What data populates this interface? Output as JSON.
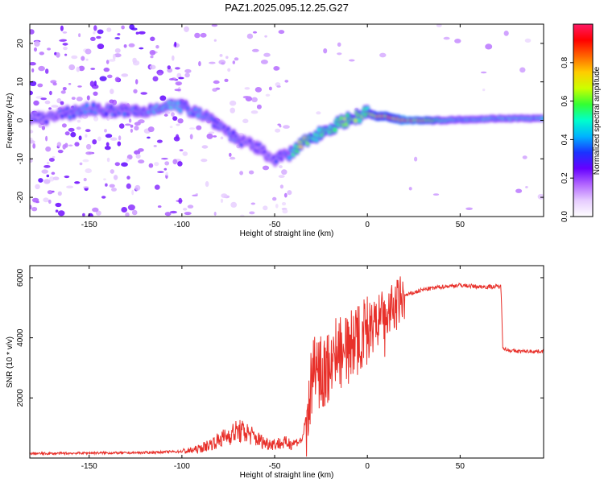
{
  "title": "PAZ1.2025.095.12.25.G27",
  "colors": {
    "snr_line": "#e8302a",
    "spectrogram_palette": [
      "#ffffff",
      "#e6ccff",
      "#b266ff",
      "#6600ff",
      "#1a33ff",
      "#00b3ff",
      "#00ffcc",
      "#33ff33",
      "#ccff00",
      "#ffcc00",
      "#ff6600",
      "#ff0000",
      "#ff1a66"
    ]
  },
  "chart_data": [
    {
      "type": "heatmap",
      "title": "PAZ1.2025.095.12.25.G27",
      "xlabel": "Height of straight line (km)",
      "ylabel": "Frequency (Hz)",
      "xlim": [
        -182,
        95
      ],
      "ylim": [
        -25,
        25
      ],
      "x_ticks": [
        -150,
        -100,
        -50,
        0,
        50
      ],
      "y_ticks": [
        -20,
        -10,
        0,
        10,
        20
      ],
      "grid": false,
      "ridge": {
        "x": [
          -175,
          -160,
          -150,
          -140,
          -130,
          -120,
          -110,
          -100,
          -90,
          -80,
          -70,
          -60,
          -50,
          -42,
          -35,
          -28,
          -20,
          -12,
          -5,
          0,
          5,
          10,
          15,
          20,
          30,
          40,
          50,
          60,
          70,
          80,
          95
        ],
        "y": [
          0.5,
          2,
          3,
          2.5,
          2.5,
          2,
          4,
          3.5,
          2,
          -1,
          -5,
          -7,
          -10,
          -9,
          -6,
          -4,
          -2,
          0,
          1,
          2,
          1,
          1,
          0.5,
          0,
          0,
          0,
          0.2,
          0.3,
          0.5,
          0.5,
          0.5
        ],
        "amplitude": [
          0.3,
          0.35,
          0.4,
          0.35,
          0.35,
          0.35,
          0.45,
          0.4,
          0.4,
          0.35,
          0.35,
          0.3,
          0.3,
          0.4,
          0.7,
          0.55,
          0.55,
          0.6,
          0.6,
          0.55,
          0.75,
          0.75,
          0.75,
          0.85,
          0.75,
          0.5,
          0.45,
          0.45,
          0.45,
          0.45,
          0.45
        ]
      },
      "colorbar": {
        "label": "Normalized spectral amplitude",
        "range": [
          0.0,
          1.0
        ],
        "ticks": [
          0.0,
          0.2,
          0.4,
          0.6,
          0.8
        ]
      }
    },
    {
      "type": "line",
      "xlabel": "Height of straight line (km)",
      "ylabel": "SNR (10 * v/v)",
      "xlim": [
        -182,
        95
      ],
      "ylim": [
        0,
        6400
      ],
      "x_ticks": [
        -150,
        -100,
        -50,
        0,
        50
      ],
      "y_ticks": [
        2000,
        4000,
        6000
      ],
      "grid": false,
      "series": [
        {
          "x": [
            -182,
            -170,
            -160,
            -150,
            -140,
            -130,
            -120,
            -110,
            -100,
            -95,
            -90,
            -85,
            -80,
            -75,
            -70,
            -65,
            -60,
            -55,
            -50,
            -45,
            -40,
            -35,
            -32,
            -30,
            -27,
            -24,
            -20,
            -17,
            -14,
            -12,
            -10,
            -8,
            -5,
            0,
            5,
            10,
            15,
            20,
            25,
            30,
            40,
            50,
            60,
            65,
            70,
            72,
            73,
            75,
            80,
            85,
            90,
            95
          ],
          "y": [
            150,
            150,
            160,
            170,
            170,
            170,
            180,
            200,
            220,
            250,
            320,
            450,
            600,
            750,
            900,
            850,
            650,
            500,
            480,
            500,
            500,
            600,
            1800,
            2500,
            3000,
            2800,
            3200,
            3400,
            3700,
            4100,
            3300,
            3900,
            4000,
            4200,
            4500,
            4800,
            5000,
            5400,
            5500,
            5600,
            5700,
            5750,
            5700,
            5700,
            5700,
            5700,
            3700,
            3600,
            3550,
            3550,
            3550,
            3550
          ]
        }
      ]
    }
  ]
}
